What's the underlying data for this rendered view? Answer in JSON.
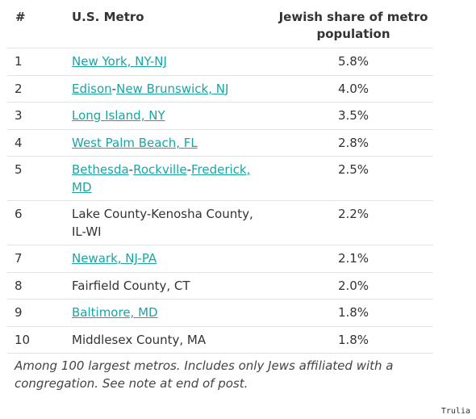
{
  "table": {
    "headers": {
      "rank": "#",
      "metro": "U.S. Metro",
      "share": "Jewish share of metro population"
    },
    "rows": [
      {
        "rank": "1",
        "parts": [
          {
            "text": "New York, NY-NJ",
            "link": true
          }
        ],
        "share": "5.8%"
      },
      {
        "rank": "2",
        "parts": [
          {
            "text": "Edison",
            "link": true
          },
          {
            "text": "-",
            "link": false
          },
          {
            "text": "New Brunswick, NJ",
            "link": true
          }
        ],
        "share": "4.0%"
      },
      {
        "rank": "3",
        "parts": [
          {
            "text": "Long Island, NY",
            "link": true
          }
        ],
        "share": "3.5%"
      },
      {
        "rank": "4",
        "parts": [
          {
            "text": "West Palm Beach, FL",
            "link": true
          }
        ],
        "share": "2.8%"
      },
      {
        "rank": "5",
        "parts": [
          {
            "text": "Bethesda",
            "link": true
          },
          {
            "text": "-",
            "link": false
          },
          {
            "text": "Rockville",
            "link": true
          },
          {
            "text": "-",
            "link": false
          },
          {
            "text": "Frederick, MD",
            "link": true
          }
        ],
        "share": "2.5%"
      },
      {
        "rank": "6",
        "parts": [
          {
            "text": "Lake County-Kenosha County, IL-WI",
            "link": false
          }
        ],
        "share": "2.2%"
      },
      {
        "rank": "7",
        "parts": [
          {
            "text": "Newark, NJ-PA",
            "link": true
          }
        ],
        "share": "2.1%"
      },
      {
        "rank": "8",
        "parts": [
          {
            "text": "Fairfield County, CT",
            "link": false
          }
        ],
        "share": "2.0%"
      },
      {
        "rank": "9",
        "parts": [
          {
            "text": "Baltimore, MD",
            "link": true
          }
        ],
        "share": "1.8%"
      },
      {
        "rank": "10",
        "parts": [
          {
            "text": "Middlesex County, MA",
            "link": false
          }
        ],
        "share": "1.8%"
      }
    ]
  },
  "note": "Among 100 largest metros. Includes only Jews affiliated with a congregation. See note at end of post.",
  "credit": "Trulia",
  "colors": {
    "link": "#1aa5a5",
    "text": "#333333",
    "rule": "#e3e3e3"
  }
}
